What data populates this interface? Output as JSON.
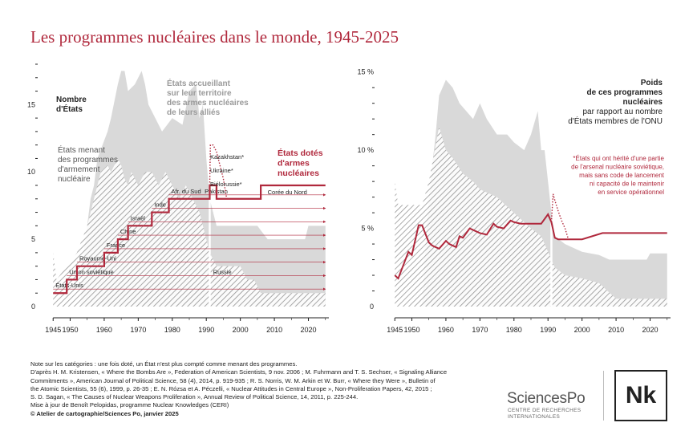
{
  "title": "Les programmes nucléaires dans le monde, 1945-2025",
  "colors": {
    "accent": "#b0283c",
    "grey_area": "#d9d9d9",
    "hatch": "#8a8a8a",
    "axis": "#222222"
  },
  "chart_data": [
    {
      "type": "area",
      "panel": "left",
      "ylabel": "Nombre d'États",
      "ylabel_lines": [
        "Nombre",
        "d'États"
      ],
      "ylim": [
        0,
        18
      ],
      "xlim": [
        1944,
        2026
      ],
      "yticks": [
        0,
        5,
        10,
        15
      ],
      "xticks": [
        1945,
        1950,
        1960,
        1970,
        1980,
        1990,
        2000,
        2010,
        2020
      ],
      "x_tick_labels": [
        "1945",
        "1950",
        "1960",
        "1970",
        "1980",
        "1990",
        "2000",
        "2010",
        "2020"
      ],
      "series": [
        {
          "name": "États accueillant sur leur territoire des armes nucléaires de leurs alliés",
          "label_lines": [
            "États accueillant",
            "sur leur territoire",
            "des armes nucléaires",
            "de leurs alliés"
          ],
          "style": "grey-area",
          "x": [
            1945,
            1953,
            1954,
            1955,
            1956,
            1957,
            1958,
            1961,
            1962,
            1964,
            1965,
            1966,
            1967,
            1969,
            1971,
            1972,
            1973,
            1975,
            1977,
            1980,
            1983,
            1985,
            1987,
            1988,
            1989,
            1990,
            1991,
            1992,
            1993,
            1995,
            1997,
            1999,
            2000,
            2005,
            2008,
            2019,
            2020,
            2025
          ],
          "y": [
            0,
            0,
            4,
            6,
            8,
            9,
            11,
            13,
            14,
            16.5,
            17.5,
            17.5,
            16,
            16.5,
            17.5,
            16.5,
            15,
            14,
            13,
            14,
            13.5,
            16,
            16.5,
            14,
            15,
            11,
            8,
            7,
            6,
            6,
            6,
            6,
            6,
            6,
            5,
            5,
            6,
            6
          ]
        },
        {
          "name": "États menant des programmes d'armement nucléaire",
          "label_lines": [
            "États menant",
            "des programmes",
            "d'armement",
            "nucléaire"
          ],
          "style": "hatched-area",
          "x": [
            1945,
            1946,
            1949,
            1952,
            1955,
            1957,
            1958,
            1959,
            1961,
            1962,
            1964,
            1965,
            1966,
            1967,
            1968,
            1970,
            1972,
            1974,
            1976,
            1978,
            1980,
            1982,
            1984,
            1986,
            1988,
            1990,
            1991,
            1993,
            1995,
            1997,
            2000,
            2002,
            2004,
            2006,
            2008,
            2010,
            2015,
            2020,
            2025
          ],
          "y": [
            4,
            2,
            3,
            4,
            6,
            8,
            9,
            10,
            10.5,
            10,
            11,
            10.5,
            9.5,
            9,
            10,
            9,
            10,
            10,
            9,
            10,
            9,
            8,
            9,
            8,
            7,
            5,
            4,
            3,
            3,
            3,
            3,
            2,
            2,
            1,
            1,
            1,
            1,
            1,
            1
          ]
        },
        {
          "name": "États dotés d'armes nucléaires",
          "label_lines": [
            "États dotés",
            "d'armes",
            "nucléaires"
          ],
          "style": "red-step",
          "x": [
            1945,
            1949,
            1952,
            1960,
            1964,
            1967,
            1974,
            1979,
            1990,
            1991,
            1992,
            1993,
            1994,
            1998,
            2006,
            2025
          ],
          "y": [
            1,
            2,
            3,
            4,
            5,
            6,
            7,
            8,
            8,
            9,
            9,
            8,
            8,
            8,
            9,
            9
          ]
        },
        {
          "name": "Kazakhstan, Ukraine, Biélorussie",
          "style": "red-dotted",
          "x": [
            1991,
            1991.2,
            1992,
            1993,
            1994,
            1995,
            1996
          ],
          "y": [
            9,
            12,
            12,
            11.5,
            10.5,
            9.5,
            8
          ]
        }
      ],
      "country_labels": [
        {
          "label": "États-Unis",
          "year": 1945,
          "row": 1
        },
        {
          "label": "Union soviétique",
          "year": 1949,
          "row": 2
        },
        {
          "label": "Royaume-Uni",
          "year": 1952,
          "row": 3
        },
        {
          "label": "France",
          "year": 1960,
          "row": 4
        },
        {
          "label": "Chine",
          "year": 1964,
          "row": 5
        },
        {
          "label": "Israël",
          "year": 1967,
          "row": 6
        },
        {
          "label": "Inde",
          "year": 1974,
          "row": 7
        },
        {
          "label": "Afr. du Sud",
          "year": 1979,
          "row": 8
        },
        {
          "label": "Pakistan",
          "year": 1998,
          "row": 8
        },
        {
          "label": "Corée du Nord",
          "year": 2006,
          "row": 9
        },
        {
          "label": "Russie",
          "year": 1991,
          "row": 2
        }
      ],
      "former_soviet_labels": [
        "Kazakhstan",
        "Ukraine",
        "Biélorussie"
      ],
      "asterisk": "*"
    },
    {
      "type": "line",
      "panel": "right",
      "ylabel_lines": [
        "Poids",
        "de ces programmes",
        "nucléaires"
      ],
      "ylabel_sub_lines": [
        "par rapport au nombre",
        "d'États membres de l'ONU"
      ],
      "ylim": [
        0,
        15.5
      ],
      "xlim": [
        1944,
        2026
      ],
      "yticks": [
        0,
        5,
        10,
        15
      ],
      "y_tick_labels": [
        "0",
        "5 %",
        "10 %",
        "15 %"
      ],
      "xticks": [
        1945,
        1950,
        1960,
        1970,
        1980,
        1990,
        2000,
        2010,
        2020
      ],
      "x_tick_labels": [
        "1945",
        "1950",
        "1960",
        "1970",
        "1980",
        "1990",
        "2000",
        "2010",
        "2020"
      ],
      "footnote_lines": [
        "*États qui ont hérité d'une partie",
        "de l'arsenal nucléaire soviétique,",
        "mais sans code de lancement",
        "ni capacité de le maintenir",
        "en service opérationnel"
      ],
      "series": [
        {
          "name": "États accueillant des armes nucléaires de leurs alliés (%)",
          "style": "grey-area",
          "x": [
            1945,
            1953,
            1954,
            1955,
            1956,
            1957,
            1958,
            1960,
            1962,
            1964,
            1966,
            1968,
            1970,
            1972,
            1975,
            1978,
            1980,
            1983,
            1985,
            1987,
            1988,
            1989,
            1990,
            1991,
            1992,
            1995,
            2000,
            2005,
            2008,
            2019,
            2020,
            2025
          ],
          "y": [
            0,
            0,
            4,
            7,
            9,
            11,
            13.5,
            14.5,
            14,
            13,
            12.5,
            12,
            13,
            12,
            11,
            11,
            10.5,
            10,
            11,
            12.5,
            10,
            10,
            8,
            6,
            4.5,
            4,
            3.5,
            3.3,
            3,
            3,
            3.4,
            3.4
          ]
        },
        {
          "name": "États menant des programmes d'armement nucléaire (%)",
          "style": "hatched-area",
          "x": [
            1945,
            1946,
            1948,
            1950,
            1953,
            1955,
            1958,
            1960,
            1962,
            1965,
            1968,
            1970,
            1975,
            1980,
            1985,
            1988,
            1990,
            1992,
            1995,
            2000,
            2005,
            2010,
            2020,
            2025
          ],
          "y": [
            8,
            6.5,
            6.5,
            6.5,
            6.5,
            8,
            11.5,
            10,
            9.5,
            8.5,
            8,
            7.5,
            7,
            6,
            5,
            4.5,
            3.5,
            2.5,
            2,
            1.8,
            1.5,
            0.5,
            0.5,
            0.5
          ]
        },
        {
          "name": "États dotés d'armes nucléaires (%)",
          "style": "red-line",
          "x": [
            1945,
            1946,
            1949,
            1950,
            1952,
            1953,
            1955,
            1956,
            1958,
            1960,
            1961,
            1963,
            1964,
            1965,
            1967,
            1968,
            1970,
            1972,
            1974,
            1975,
            1977,
            1979,
            1980,
            1982,
            1985,
            1988,
            1990,
            1991,
            1992,
            1993,
            1994,
            1995,
            2000,
            2006,
            2010,
            2020,
            2025
          ],
          "y": [
            2,
            1.8,
            3.5,
            3.3,
            5.2,
            5.2,
            4.1,
            3.9,
            3.7,
            4.2,
            4.0,
            3.8,
            4.5,
            4.4,
            5.0,
            4.9,
            4.7,
            4.6,
            5.3,
            5.1,
            5.0,
            5.5,
            5.4,
            5.3,
            5.3,
            5.3,
            5.9,
            5.4,
            4.4,
            4.3,
            4.3,
            4.3,
            4.3,
            4.7,
            4.7,
            4.7,
            4.7
          ]
        },
        {
          "name": "Kazakhstan, Ukraine, Biélorussie (%)",
          "style": "red-dotted",
          "x": [
            1991,
            1991.5,
            1992,
            1993,
            1994,
            1995,
            1996
          ],
          "y": [
            5.4,
            7.2,
            6.8,
            6.1,
            5.5,
            5,
            4.3
          ]
        }
      ]
    }
  ],
  "note_lines": [
    "Note sur les catégories : une fois doté, un État n'est plus compté comme menant des programmes.",
    "D'après H. M. Kristensen, « Where the Bombs Are », Federation of American Scientists, 9 nov. 2006 ; M. Fuhrmann and T. S. Sechser, « Signaling Alliance",
    "Commitments », American Journal of Political Science, 58 (4), 2014, p. 919-935 ; R. S. Norris, W. M. Arkin et W. Burr, « Where they Were », Bulletin of",
    "the Atomic Scientists, 55 (6), 1999, p. 26-35 ; E. N. Rózsa et A. Péczelli, « Nuclear Attitudes in Central Europe », Non-Proliferation Papers, 42, 2015 ;",
    "S. D. Sagan, « The Causes of Nuclear Weapons Proliferation », Annual Review of Political Science, 14, 2011, p. 225-244.",
    "Mise à jour de Benoît Pelopidas, programme Nuclear Knowledges (CERI)"
  ],
  "credit": "© Atelier de cartographie/Sciences Po, janvier 2025",
  "brand": {
    "name": "SciencesPo",
    "sub_lines": [
      "CENTRE DE RECHERCHES",
      "INTERNATIONALES"
    ],
    "logo_text": "Nk"
  }
}
